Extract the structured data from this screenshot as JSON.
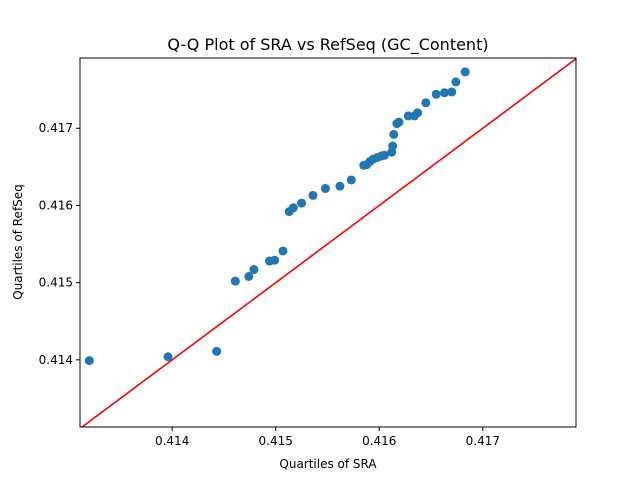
{
  "chart_data": {
    "type": "scatter",
    "title": "Q-Q Plot of SRA vs RefSeq (GC_Content)",
    "xlabel": "Quartiles of SRA",
    "ylabel": "Quartiles of RefSeq",
    "xlim": [
      0.41311,
      0.4179
    ],
    "ylim": [
      0.41313,
      0.41791
    ],
    "xticks": [
      {
        "value": 0.414,
        "label": "0.414"
      },
      {
        "value": 0.415,
        "label": "0.415"
      },
      {
        "value": 0.416,
        "label": "0.416"
      },
      {
        "value": 0.417,
        "label": "0.417"
      }
    ],
    "yticks": [
      {
        "value": 0.414,
        "label": "0.414"
      },
      {
        "value": 0.415,
        "label": "0.415"
      },
      {
        "value": 0.416,
        "label": "0.416"
      },
      {
        "value": 0.417,
        "label": "0.417"
      }
    ],
    "grid": false,
    "points": [
      [
        0.4132,
        0.41399
      ],
      [
        0.41396,
        0.41404
      ],
      [
        0.41443,
        0.41411
      ],
      [
        0.41461,
        0.41502
      ],
      [
        0.41474,
        0.41508
      ],
      [
        0.41479,
        0.41517
      ],
      [
        0.41494,
        0.41528
      ],
      [
        0.41499,
        0.41529
      ],
      [
        0.41507,
        0.41541
      ],
      [
        0.41513,
        0.41592
      ],
      [
        0.41517,
        0.41597
      ],
      [
        0.41525,
        0.41603
      ],
      [
        0.41536,
        0.41613
      ],
      [
        0.41548,
        0.41622
      ],
      [
        0.41562,
        0.41625
      ],
      [
        0.41573,
        0.41633
      ],
      [
        0.41585,
        0.41652
      ],
      [
        0.41588,
        0.41653
      ],
      [
        0.41591,
        0.41657
      ],
      [
        0.41594,
        0.4166
      ],
      [
        0.41598,
        0.41662
      ],
      [
        0.41602,
        0.41664
      ],
      [
        0.41605,
        0.41665
      ],
      [
        0.41612,
        0.41669
      ],
      [
        0.41613,
        0.41677
      ],
      [
        0.41614,
        0.41692
      ],
      [
        0.41617,
        0.41706
      ],
      [
        0.41619,
        0.41708
      ],
      [
        0.41628,
        0.41716
      ],
      [
        0.41634,
        0.41716
      ],
      [
        0.41637,
        0.4172
      ],
      [
        0.41645,
        0.41733
      ],
      [
        0.41655,
        0.41744
      ],
      [
        0.41663,
        0.41746
      ],
      [
        0.4167,
        0.41747
      ],
      [
        0.41674,
        0.4176
      ],
      [
        0.41683,
        0.41773
      ]
    ],
    "reference_line": {
      "x": [
        0.41311,
        0.4179
      ],
      "y": [
        0.41311,
        0.4179
      ]
    },
    "colors": {
      "points": "#1f77b4",
      "reference_line": "#ff0000"
    }
  }
}
